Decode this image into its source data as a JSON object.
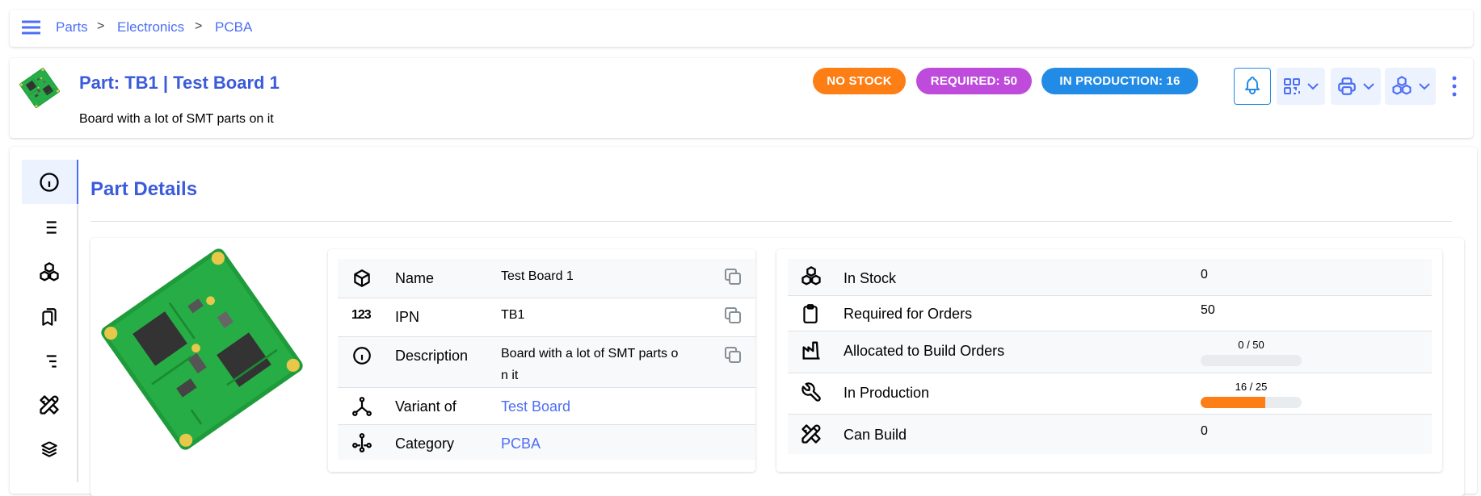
{
  "breadcrumb": [
    {
      "label": "Parts"
    },
    {
      "label": "Electronics"
    },
    {
      "label": "PCBA"
    }
  ],
  "breadcrumb_separator": ">",
  "header": {
    "title": "Part: TB1 | Test Board 1",
    "description": "Board with a lot of SMT parts on it",
    "badges": [
      {
        "label": "NO STOCK",
        "color": "#fd7e14"
      },
      {
        "label": "REQUIRED: 50",
        "color": "#be4bdb"
      },
      {
        "label": "IN PRODUCTION: 16",
        "color": "#228be6"
      }
    ],
    "actions": [
      "bell-icon",
      "qrcode-icon",
      "printer-icon",
      "stock-icon",
      "dots-vertical-icon"
    ]
  },
  "sidebar": {
    "tabs": [
      "info-icon",
      "list-icon",
      "stack-icon",
      "bookmarks-icon",
      "list-details-icon",
      "tools-icon",
      "layers-icon"
    ],
    "active": 0
  },
  "main": {
    "title": "Part Details",
    "details": [
      {
        "icon": "box-icon",
        "label": "Name",
        "value": "Test Board 1",
        "copy": true
      },
      {
        "icon": "numbers-123-icon",
        "label": "IPN",
        "value": "TB1",
        "copy": true
      },
      {
        "icon": "info-icon",
        "label": "Description",
        "value": "Board with a lot of SMT parts o\nn it",
        "copy": true
      },
      {
        "icon": "variant-icon",
        "label": "Variant of",
        "value": "Test Board",
        "link": true
      },
      {
        "icon": "category-icon",
        "label": "Category",
        "value": "PCBA",
        "link": true
      }
    ],
    "stock": [
      {
        "icon": "stack-icon",
        "label": "In Stock",
        "value": "0"
      },
      {
        "icon": "clipboard-icon",
        "label": "Required for Orders",
        "value": "50"
      },
      {
        "icon": "factory-icon",
        "label": "Allocated to Build Orders",
        "progress_text": "0 / 50",
        "progress": 0
      },
      {
        "icon": "tool-icon",
        "label": "In Production",
        "progress_text": "16 / 25",
        "progress": 0.64
      },
      {
        "icon": "tools-icon",
        "label": "Can Build",
        "value": "0"
      }
    ]
  }
}
